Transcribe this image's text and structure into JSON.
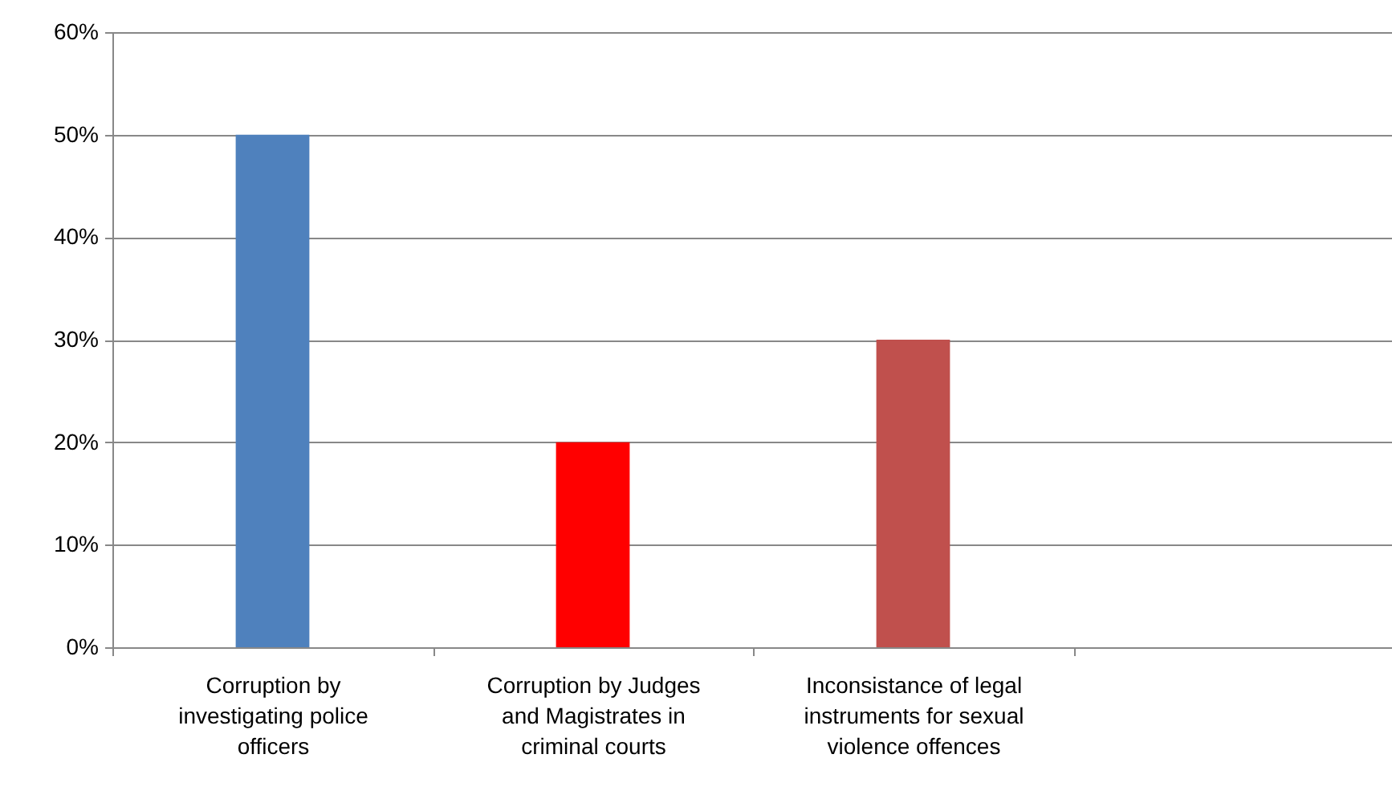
{
  "chart_data": {
    "type": "bar",
    "categories": [
      "Corruption by investigating police officers",
      "Corruption by Judges and Magistrates in criminal courts",
      "Inconsistance of legal instruments for sexual violence offences",
      null
    ],
    "values": [
      50,
      20,
      30,
      null
    ],
    "colors": [
      "#4f81bd",
      "#ff0000",
      "#c0504d",
      "#4f81bd"
    ],
    "ylim": [
      0,
      60
    ],
    "yticks": [
      {
        "value": 0,
        "label": "0%"
      },
      {
        "value": 10,
        "label": "10%"
      },
      {
        "value": 20,
        "label": "20%"
      },
      {
        "value": 30,
        "label": "30%"
      },
      {
        "value": 40,
        "label": "40%"
      },
      {
        "value": 50,
        "label": "50%"
      },
      {
        "value": 60,
        "label": "60%"
      }
    ],
    "grid": "y"
  }
}
